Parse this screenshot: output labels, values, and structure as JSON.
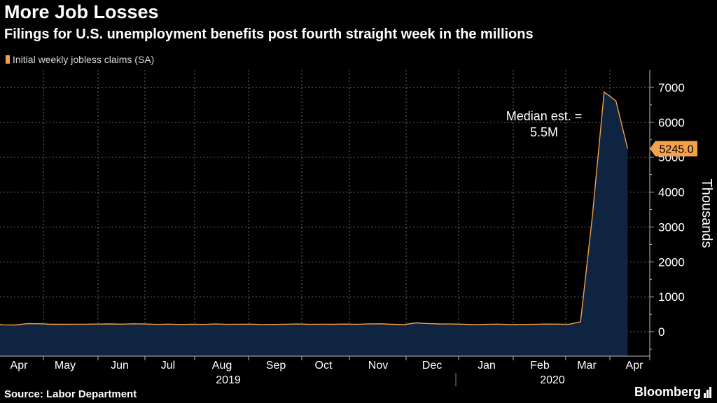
{
  "header": {
    "title": "More Job Losses",
    "subtitle": "Filings for U.S. unemployment benefits post fourth straight week in the millions"
  },
  "legend": {
    "label": "Initial weekly jobless claims (SA)",
    "color": "#f3a14b"
  },
  "footer": {
    "source": "Source: Labor Department",
    "brand": "Bloomberg"
  },
  "colors": {
    "line": "#f3a14b",
    "area": "#0e2440",
    "grid": "#6a6a6a",
    "text": "#ffffff",
    "background": "#000000"
  },
  "chart_data": {
    "type": "area",
    "title": "More Job Losses",
    "subtitle": "Filings for U.S. unemployment benefits post fourth straight week in the millions",
    "ylabel": "Thousands",
    "xlabel": "",
    "ylim": [
      -700,
      7500
    ],
    "yticks": [
      0,
      1000,
      2000,
      3000,
      4000,
      5000,
      6000,
      7000
    ],
    "grid": true,
    "y_axis_side": "right",
    "legend_position": "top-left",
    "x_month_labels": [
      "Apr",
      "May",
      "Jun",
      "Jul",
      "Aug",
      "Sep",
      "Oct",
      "Nov",
      "Dec",
      "Jan",
      "Feb",
      "Mar",
      "Apr"
    ],
    "x_year_labels": [
      "2019",
      "2020"
    ],
    "last_value_label": "5245.0",
    "annotation": {
      "line1": "Median est. =",
      "line2": "5.5M"
    },
    "series": [
      {
        "name": "Initial weekly jobless claims (SA)",
        "x": [
          "2019-03-30",
          "2019-04-06",
          "2019-04-13",
          "2019-04-20",
          "2019-04-27",
          "2019-05-04",
          "2019-05-11",
          "2019-05-18",
          "2019-05-25",
          "2019-06-01",
          "2019-06-08",
          "2019-06-15",
          "2019-06-22",
          "2019-06-29",
          "2019-07-06",
          "2019-07-13",
          "2019-07-20",
          "2019-07-27",
          "2019-08-03",
          "2019-08-10",
          "2019-08-17",
          "2019-08-24",
          "2019-08-31",
          "2019-09-07",
          "2019-09-14",
          "2019-09-21",
          "2019-09-28",
          "2019-10-05",
          "2019-10-12",
          "2019-10-19",
          "2019-10-26",
          "2019-11-02",
          "2019-11-09",
          "2019-11-16",
          "2019-11-23",
          "2019-11-30",
          "2019-12-07",
          "2019-12-14",
          "2019-12-21",
          "2019-12-28",
          "2020-01-04",
          "2020-01-11",
          "2020-01-18",
          "2020-01-25",
          "2020-02-01",
          "2020-02-08",
          "2020-02-15",
          "2020-02-22",
          "2020-02-29",
          "2020-03-07",
          "2020-03-14",
          "2020-03-21",
          "2020-03-28",
          "2020-04-04",
          "2020-04-11"
        ],
        "values": [
          202,
          196,
          192,
          230,
          228,
          212,
          212,
          215,
          215,
          218,
          222,
          216,
          227,
          221,
          209,
          216,
          206,
          215,
          209,
          220,
          210,
          215,
          217,
          204,
          208,
          215,
          220,
          210,
          214,
          212,
          218,
          211,
          225,
          227,
          213,
          203,
          252,
          234,
          222,
          220,
          214,
          204,
          211,
          216,
          202,
          206,
          210,
          219,
          216,
          211,
          282,
          3307,
          6867,
          6615,
          5245
        ]
      }
    ]
  }
}
